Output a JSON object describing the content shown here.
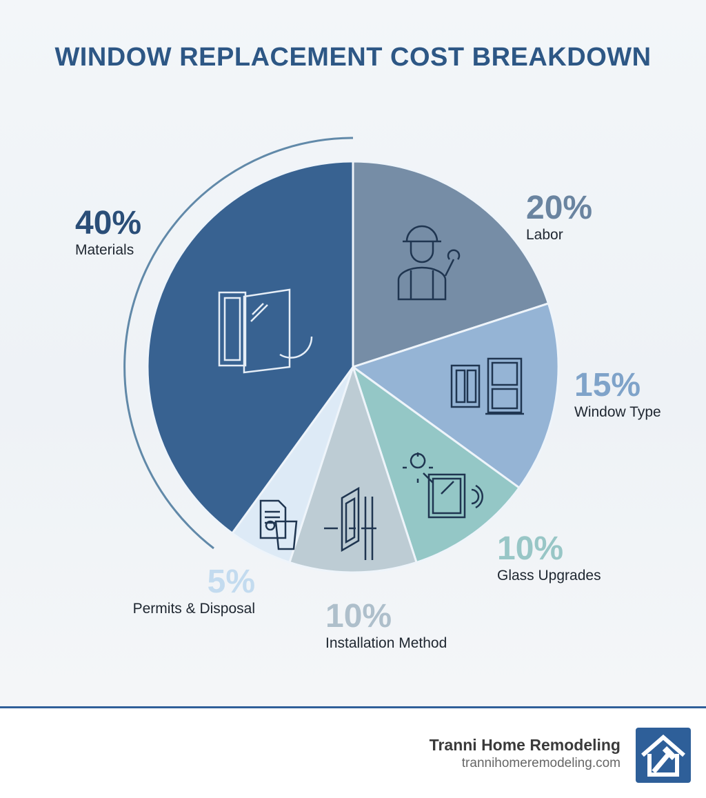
{
  "chart_data": {
    "type": "pie",
    "title": "WINDOW REPLACEMENT COST BREAKDOWN",
    "start_angle": "12 o'clock",
    "direction": "clockwise",
    "categories": [
      "Labor",
      "Window Type",
      "Glass Upgrades",
      "Installation Method",
      "Permits & Disposal",
      "Materials"
    ],
    "values": [
      20,
      15,
      10,
      10,
      5,
      40
    ],
    "labels": [
      "20%",
      "15%",
      "10%",
      "10%",
      "5%",
      "40%"
    ],
    "colors": [
      "#6f87a1",
      "#8fb0d3",
      "#8ec4c3",
      "#b9c9d2",
      "#dbe9f6",
      "#2d5a8b"
    ],
    "label_colors": [
      "#6a84a0",
      "#7fa3c9",
      "#98c6c6",
      "#aebfcb",
      "#c3dbef",
      "#2a4e78"
    ],
    "icons": [
      "worker-icon",
      "windows-icon",
      "glass-sun-icon",
      "installation-icon",
      "permit-recycle-icon",
      "window-swap-icon"
    ]
  },
  "footer": {
    "company": "Tranni Home Remodeling",
    "url": "trannihomeremodeling.com",
    "logo_icon": "house-hammer-icon"
  }
}
